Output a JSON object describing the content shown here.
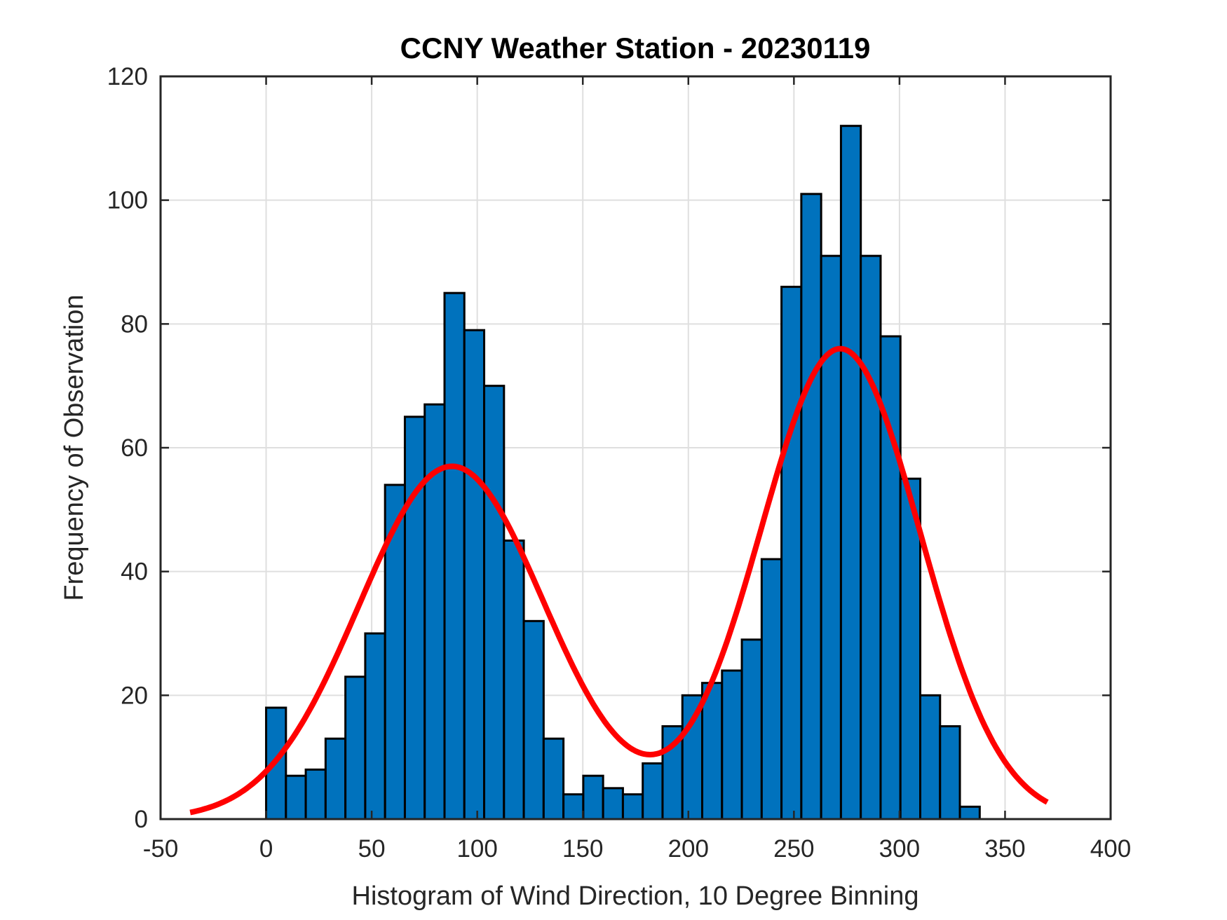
{
  "chart_data": {
    "type": "bar",
    "subtype": "histogram",
    "title": "CCNY Weather Station - 20230119",
    "xlabel": "Histogram of Wind Direction, 10 Degree Binning",
    "ylabel": "Frequency of Observation",
    "xlim": [
      -50,
      400
    ],
    "ylim": [
      0,
      120
    ],
    "xticks": [
      -50,
      0,
      50,
      100,
      150,
      200,
      250,
      300,
      350,
      400
    ],
    "yticks": [
      0,
      20,
      40,
      60,
      80,
      100,
      120
    ],
    "xtick_labels": [
      "-50",
      "0",
      "50",
      "100",
      "150",
      "200",
      "250",
      "300",
      "350",
      "400"
    ],
    "ytick_labels": [
      "0",
      "20",
      "40",
      "60",
      "80",
      "100",
      "120"
    ],
    "grid": true,
    "legend": null,
    "bin_range": [
      0,
      338
    ],
    "bin_count": 36,
    "values": [
      18,
      7,
      8,
      13,
      23,
      30,
      54,
      65,
      67,
      85,
      79,
      70,
      45,
      32,
      13,
      4,
      7,
      5,
      4,
      9,
      15,
      20,
      22,
      24,
      29,
      42,
      86,
      101,
      91,
      112,
      91,
      78,
      55,
      20,
      15,
      2
    ],
    "bar_color": "#0072bd",
    "fit_curve": {
      "name": "Two-component Gaussian fit",
      "color": "#ff0000",
      "x_range": [
        -36,
        370
      ],
      "components": [
        {
          "amplitude": 57,
          "mean": 88,
          "sigma": 44
        },
        {
          "amplitude": 76,
          "mean": 272,
          "sigma": 38
        }
      ]
    }
  }
}
